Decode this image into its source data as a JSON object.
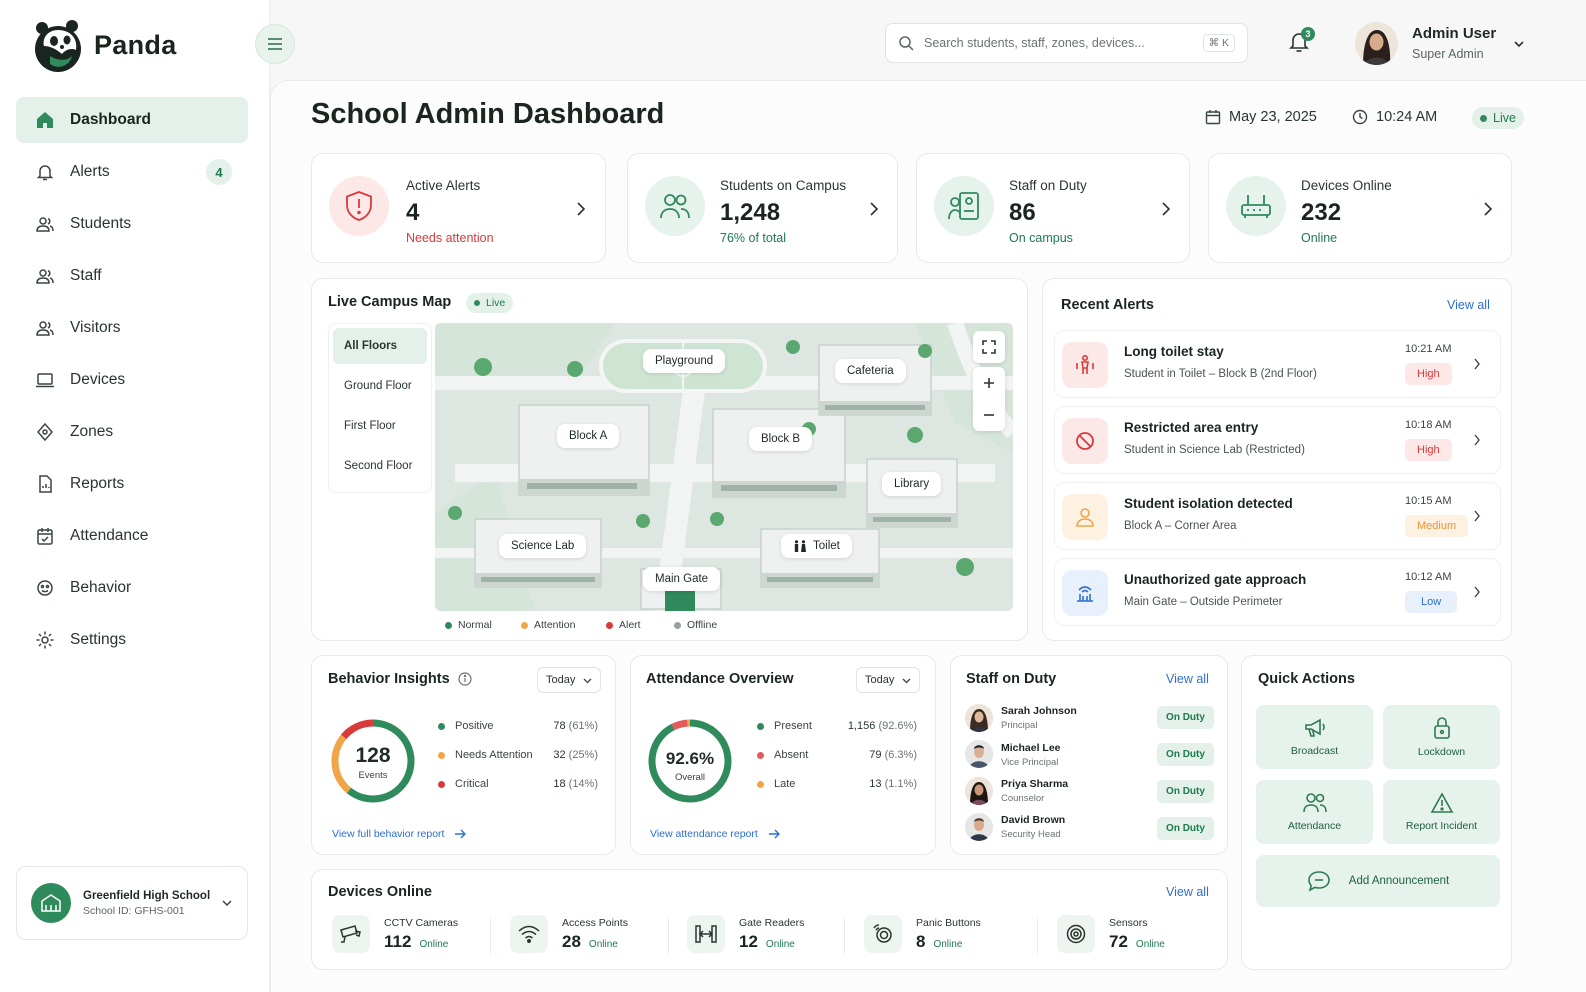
{
  "brand": {
    "name": "Panda"
  },
  "sidebar": {
    "items": [
      {
        "label": "Dashboard",
        "icon": "home-icon"
      },
      {
        "label": "Alerts",
        "icon": "bell-icon",
        "badge": "4"
      },
      {
        "label": "Students",
        "icon": "students-icon"
      },
      {
        "label": "Staff",
        "icon": "staff-icon"
      },
      {
        "label": "Visitors",
        "icon": "visitors-icon"
      },
      {
        "label": "Devices",
        "icon": "laptop-icon"
      },
      {
        "label": "Zones",
        "icon": "location-icon"
      },
      {
        "label": "Reports",
        "icon": "report-icon"
      },
      {
        "label": "Attendance",
        "icon": "calendar-check-icon"
      },
      {
        "label": "Behavior",
        "icon": "behavior-icon"
      },
      {
        "label": "Settings",
        "icon": "gear-icon"
      }
    ],
    "school": {
      "name": "Greenfield High School",
      "id": "School ID: GFHS-001"
    }
  },
  "header": {
    "search_placeholder": "Search students, staff, zones, devices...",
    "search_shortcut": "⌘ K",
    "notif_count": "3",
    "user_name": "Admin User",
    "user_role": "Super Admin"
  },
  "page": {
    "title": "School Admin Dashboard",
    "date": "May 23, 2025",
    "time": "10:24 AM",
    "live": "Live"
  },
  "stats": [
    {
      "label": "Active Alerts",
      "value": "4",
      "sub": "Needs attention"
    },
    {
      "label": "Students on Campus",
      "value": "1,248",
      "sub": "76% of total"
    },
    {
      "label": "Staff on Duty",
      "value": "86",
      "sub": "On campus"
    },
    {
      "label": "Devices  Online",
      "value": "232",
      "sub": "Online"
    }
  ],
  "map": {
    "title": "Live Campus Map",
    "live": "Live",
    "floors": [
      "All Floors",
      "Ground Floor",
      "First Floor",
      "Second Floor"
    ],
    "labels": {
      "playground": "Playground",
      "cafeteria": "Cafeteria",
      "block_a": "Block A",
      "block_b": "Block B",
      "library": "Library",
      "science_lab": "Science Lab",
      "toilet": "Toilet",
      "main_gate": "Main Gate"
    },
    "legend": [
      "Normal",
      "Attention",
      "Alert",
      "Offline"
    ]
  },
  "recent_alerts": {
    "title": "Recent Alerts",
    "view_all": "View all",
    "items": [
      {
        "title": "Long toilet stay",
        "sub": "Student in Toilet – Block B (2nd Floor)",
        "time": "10:21 AM",
        "level": "High"
      },
      {
        "title": "Restricted area entry",
        "sub": "Student in Science Lab (Restricted)",
        "time": "10:18 AM",
        "level": "High"
      },
      {
        "title": "Student isolation detected",
        "sub": "Block A – Corner Area",
        "time": "10:15 AM",
        "level": "Medium"
      },
      {
        "title": "Unauthorized gate approach",
        "sub": "Main Gate – Outside Perimeter",
        "time": "10:12 AM",
        "level": "Low"
      }
    ]
  },
  "behavior": {
    "title": "Behavior Insights",
    "filter": "Today",
    "total": "128",
    "total_label": "Events",
    "rows": [
      {
        "label": "Positive",
        "value": "78",
        "pct": "(61%)"
      },
      {
        "label": "Needs Attention",
        "value": "32",
        "pct": "(25%)"
      },
      {
        "label": "Critical",
        "value": "18",
        "pct": "(14%)"
      }
    ],
    "link": "View full behavior report"
  },
  "attendance": {
    "title": "Attendance Overview",
    "filter": "Today",
    "total": "92.6%",
    "total_label": "Overall",
    "rows": [
      {
        "label": "Present",
        "value": "1,156",
        "pct": "(92.6%)"
      },
      {
        "label": "Absent",
        "value": "79",
        "pct": "(6.3%)"
      },
      {
        "label": "Late",
        "value": "13",
        "pct": "(1.1%)"
      }
    ],
    "link": "View attendance report"
  },
  "staff": {
    "title": "Staff on Duty",
    "view_all": "View all",
    "items": [
      {
        "name": "Sarah Johnson",
        "role": "Principal",
        "status": "On Duty"
      },
      {
        "name": "Michael Lee",
        "role": "Vice Principal",
        "status": "On Duty"
      },
      {
        "name": "Priya Sharma",
        "role": "Counselor",
        "status": "On Duty"
      },
      {
        "name": "David Brown",
        "role": "Security Head",
        "status": "On Duty"
      }
    ]
  },
  "quick_actions": {
    "title": "Quick Actions",
    "items": [
      "Broadcast",
      "Lockdown",
      "Attendance",
      "Report Incident",
      "Add Announcement"
    ]
  },
  "devices": {
    "title": "Devices Online",
    "view_all": "View all",
    "items": [
      {
        "name": "CCTV Cameras",
        "value": "112",
        "status": "Online"
      },
      {
        "name": "Access Points",
        "value": "28",
        "status": "Online"
      },
      {
        "name": "Gate Readers",
        "value": "12",
        "status": "Online"
      },
      {
        "name": "Panic Buttons",
        "value": "8",
        "status": "Online"
      },
      {
        "name": "Sensors",
        "value": "72",
        "status": "Online"
      }
    ]
  },
  "colors": {
    "accent": "#2f8a5c",
    "alert_red": "#d93a3a",
    "warning_orange": "#f0a548",
    "link_blue": "#2d6fd0",
    "offline_gray": "#9aa19d"
  }
}
